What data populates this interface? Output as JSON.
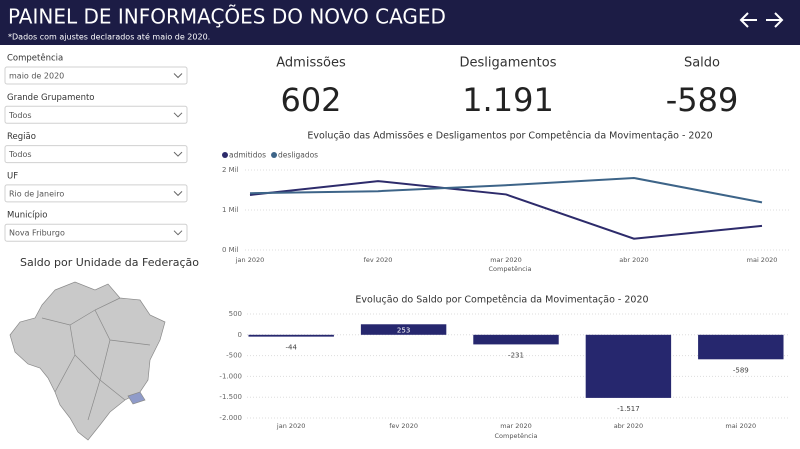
{
  "header": {
    "title": "PAINEL DE INFORMAÇÕES DO NOVO CAGED",
    "subtitle": "*Dados com ajustes declarados até maio de 2020."
  },
  "filters": [
    {
      "label": "Competência",
      "value": "maio de 2020"
    },
    {
      "label": "Grande Grupamento",
      "value": "Todos"
    },
    {
      "label": "Região",
      "value": "Todos"
    },
    {
      "label": "UF",
      "value": "Rio de Janeiro"
    },
    {
      "label": "Município",
      "value": "Nova Friburgo"
    }
  ],
  "map": {
    "title": "Saldo por Unidade da Federação"
  },
  "kpis": [
    {
      "label": "Admissões",
      "value": "602"
    },
    {
      "label": "Desligamentos",
      "value": "1.191"
    },
    {
      "label": "Saldo",
      "value": "-589"
    }
  ],
  "chart_data": [
    {
      "type": "line",
      "title": "Evolução das Admissões e Desligamentos por Competência da Movimentação - 2020",
      "categories": [
        "jan 2020",
        "fev 2020",
        "mar 2020",
        "abr 2020",
        "mai 2020"
      ],
      "series": [
        {
          "name": "admitidos",
          "color": "#2d2b6b",
          "values": [
            1376,
            1723,
            1389,
            283,
            602
          ]
        },
        {
          "name": "desligados",
          "color": "#3d6488",
          "values": [
            1420,
            1470,
            1620,
            1800,
            1191
          ]
        }
      ],
      "ylim": [
        0,
        2000
      ],
      "yticks": [
        {
          "value": 0,
          "label": "0 Mil"
        },
        {
          "value": 1000,
          "label": "1 Mil"
        },
        {
          "value": 2000,
          "label": "2 Mil"
        }
      ],
      "x_label": "Competência",
      "grid": true
    },
    {
      "type": "bar",
      "title": "Evolução do Saldo por Competência da Movimentação - 2020",
      "categories": [
        "jan 2020",
        "fev 2020",
        "mar 2020",
        "abr 2020",
        "mai 2020"
      ],
      "values": [
        -44,
        253,
        -231,
        -1517,
        -589
      ],
      "value_labels": [
        "-44",
        "253",
        "-231",
        "-1.517",
        "-589"
      ],
      "color": "#26276e",
      "ylim": [
        -2000,
        500
      ],
      "yticks": [
        500,
        0,
        -500,
        {
          "value": -1000,
          "label": "-1.000"
        },
        {
          "value": -1500,
          "label": "-1.500"
        },
        {
          "value": -2000,
          "label": "-2.000"
        }
      ],
      "x_label": "Competência",
      "grid": true
    }
  ]
}
